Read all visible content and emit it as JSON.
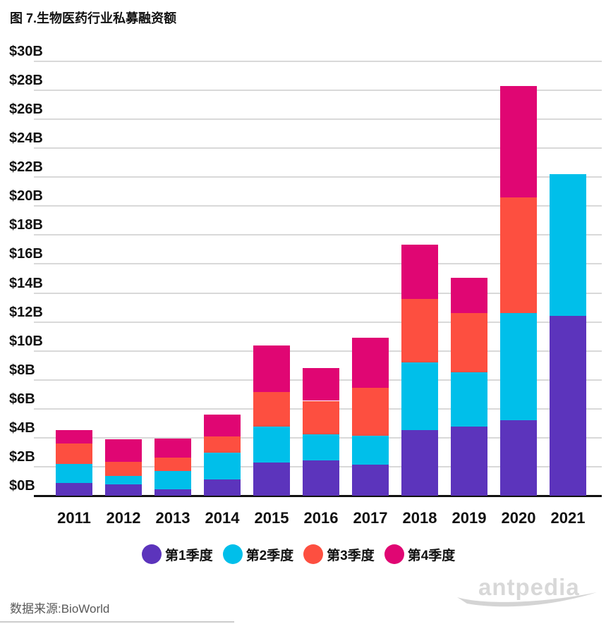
{
  "title": "图 7.生物医药行业私募融资额",
  "source_note": "数据来源:BioWorld",
  "watermark": "antpedia",
  "chart_data": {
    "type": "bar",
    "stacked": true,
    "title": "图 7.生物医药行业私募融资额",
    "xlabel": "",
    "ylabel": "",
    "ylim": [
      0,
      30
    ],
    "grid": true,
    "legend_position": "bottom",
    "y_tick_labels": [
      "$0B",
      "$2B",
      "$4B",
      "$6B",
      "$8B",
      "$10B",
      "$12B",
      "$14B",
      "$16B",
      "$18B",
      "$20B",
      "$22B",
      "$24B",
      "$26B",
      "$28B",
      "$30B"
    ],
    "y_tick_values": [
      0,
      2,
      4,
      6,
      8,
      10,
      12,
      14,
      16,
      18,
      20,
      22,
      24,
      26,
      28,
      30
    ],
    "categories": [
      "2011",
      "2012",
      "2013",
      "2014",
      "2015",
      "2016",
      "2017",
      "2018",
      "2019",
      "2020",
      "2021"
    ],
    "series": [
      {
        "name": "第1季度",
        "color": "#5c34bc",
        "values": [
          0.9,
          0.8,
          0.45,
          1.1,
          2.3,
          2.45,
          2.15,
          4.55,
          4.75,
          5.2,
          12.4
        ]
      },
      {
        "name": "第2季度",
        "color": "#00bfea",
        "values": [
          1.3,
          0.55,
          1.25,
          1.85,
          2.45,
          1.8,
          2.0,
          4.65,
          3.75,
          7.4,
          9.8
        ]
      },
      {
        "name": "第3季度",
        "color": "#fd4f40",
        "values": [
          1.4,
          1.0,
          0.95,
          1.15,
          2.4,
          2.3,
          3.3,
          4.4,
          4.1,
          8.0,
          0
        ]
      },
      {
        "name": "第4季度",
        "color": "#e00673",
        "values": [
          0.95,
          1.55,
          1.3,
          1.5,
          3.2,
          2.25,
          3.45,
          3.75,
          2.45,
          7.7,
          0
        ]
      }
    ],
    "totals": [
      4.55,
      3.9,
      3.95,
      5.6,
      10.35,
      8.8,
      10.9,
      17.35,
      15.05,
      28.3,
      22.2
    ]
  }
}
